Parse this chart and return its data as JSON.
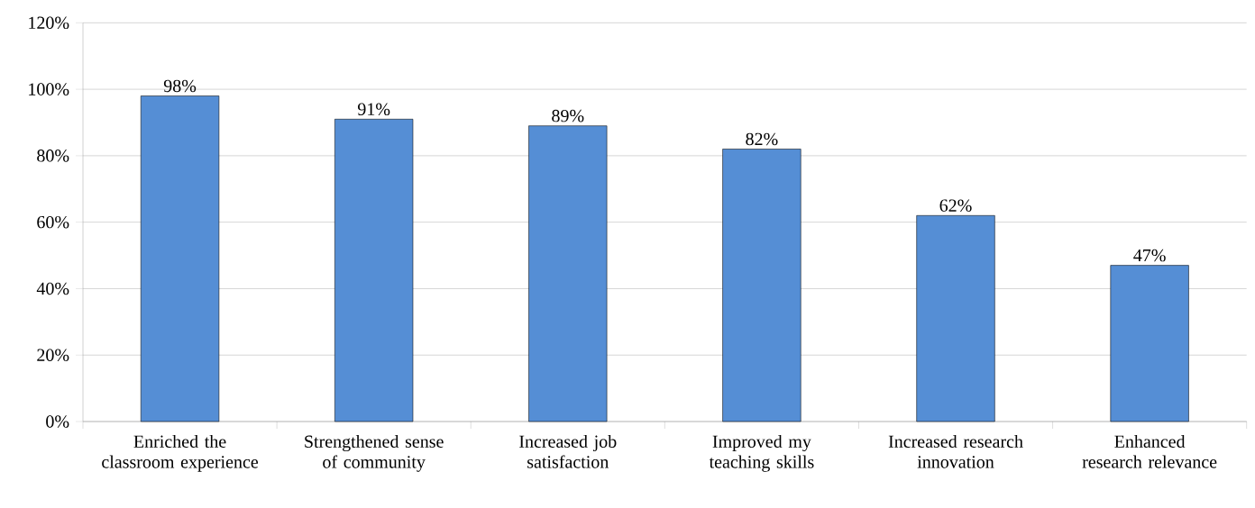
{
  "chart_data": {
    "type": "bar",
    "categories": [
      "Enriched the classroom experience",
      "Strengthened sense of community",
      "Increased job satisfaction",
      "Improved my teaching skills",
      "Increased research innovation",
      "Enhanced research relevance"
    ],
    "values": [
      98,
      91,
      89,
      82,
      62,
      47
    ],
    "value_labels": [
      "98%",
      "91%",
      "89%",
      "82%",
      "62%",
      "47%"
    ],
    "color": "#558ed5",
    "ylim": [
      0,
      120
    ],
    "yticks": [
      {
        "value": 0,
        "label": "0%"
      },
      {
        "value": 20,
        "label": "20%"
      },
      {
        "value": 40,
        "label": "40%"
      },
      {
        "value": 60,
        "label": "60%"
      },
      {
        "value": 80,
        "label": "80%"
      },
      {
        "value": 100,
        "label": "100%"
      },
      {
        "value": 120,
        "label": "120%"
      }
    ],
    "grid": "y"
  }
}
